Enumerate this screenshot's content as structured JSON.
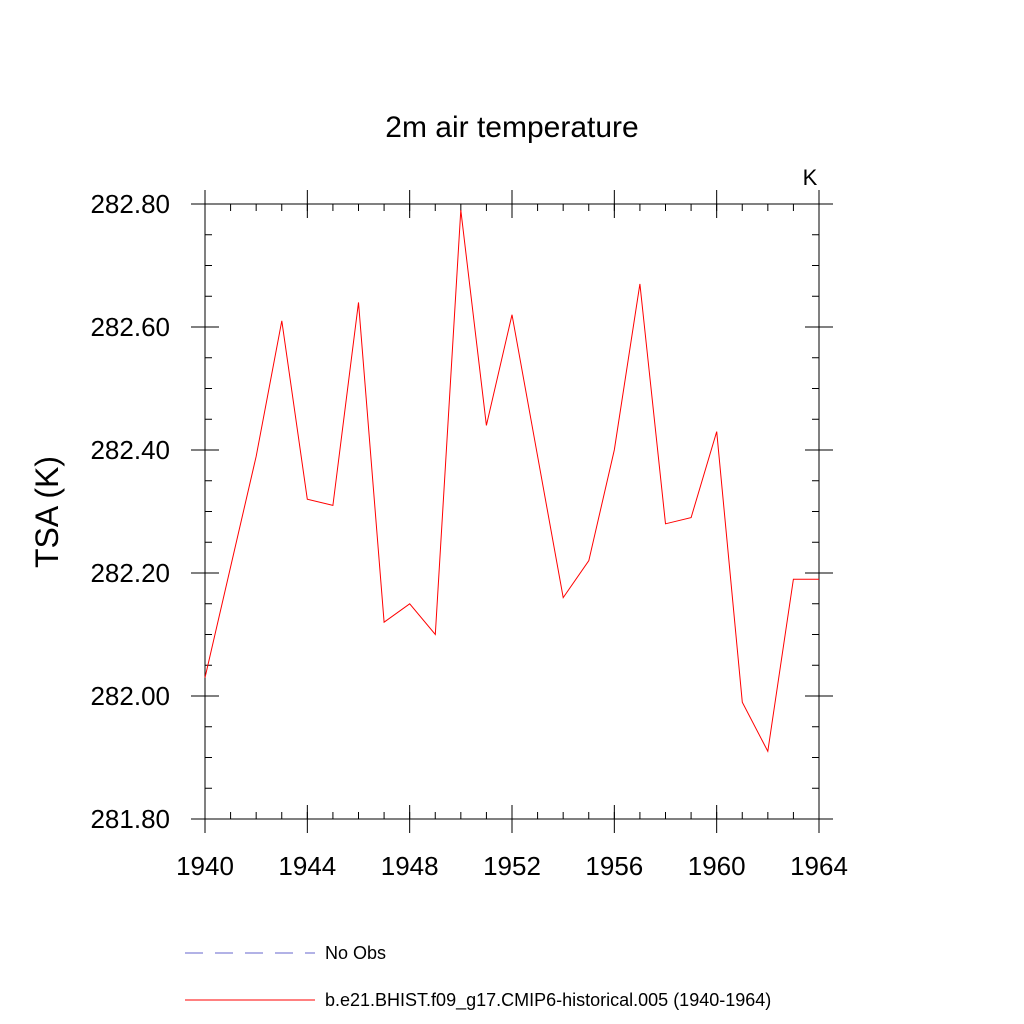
{
  "chart_data": {
    "type": "line",
    "title": "2m air temperature",
    "units_label": "K",
    "xlabel": "",
    "ylabel": "TSA  (K)",
    "xlim": [
      1940,
      1964
    ],
    "ylim": [
      281.8,
      282.8
    ],
    "x_ticks": [
      "1940",
      "1944",
      "1948",
      "1952",
      "1956",
      "1960",
      "1964"
    ],
    "y_ticks": [
      "281.80",
      "282.00",
      "282.20",
      "282.40",
      "282.60",
      "282.80"
    ],
    "x": [
      1940,
      1941,
      1942,
      1943,
      1944,
      1945,
      1946,
      1947,
      1948,
      1949,
      1950,
      1951,
      1952,
      1953,
      1954,
      1955,
      1956,
      1957,
      1958,
      1959,
      1960,
      1961,
      1962,
      1963,
      1964
    ],
    "series": [
      {
        "name": "b.e21.BHIST.f09_g17.CMIP6-historical.005 (1940-1964)",
        "color": "#ff0000",
        "style": "solid",
        "values": [
          282.03,
          282.21,
          282.39,
          282.61,
          282.32,
          282.31,
          282.64,
          282.12,
          282.15,
          282.1,
          282.79,
          282.44,
          282.62,
          282.39,
          282.16,
          282.22,
          282.4,
          282.67,
          282.28,
          282.29,
          282.43,
          281.99,
          281.91,
          282.19,
          282.19
        ]
      }
    ],
    "legend": [
      {
        "label": "No Obs",
        "color": "#6666cc",
        "style": "dashed"
      },
      {
        "label": "b.e21.BHIST.f09_g17.CMIP6-historical.005 (1940-1964)",
        "color": "#ff0000",
        "style": "solid"
      }
    ],
    "legend_placement": "bottom",
    "grid": false
  }
}
